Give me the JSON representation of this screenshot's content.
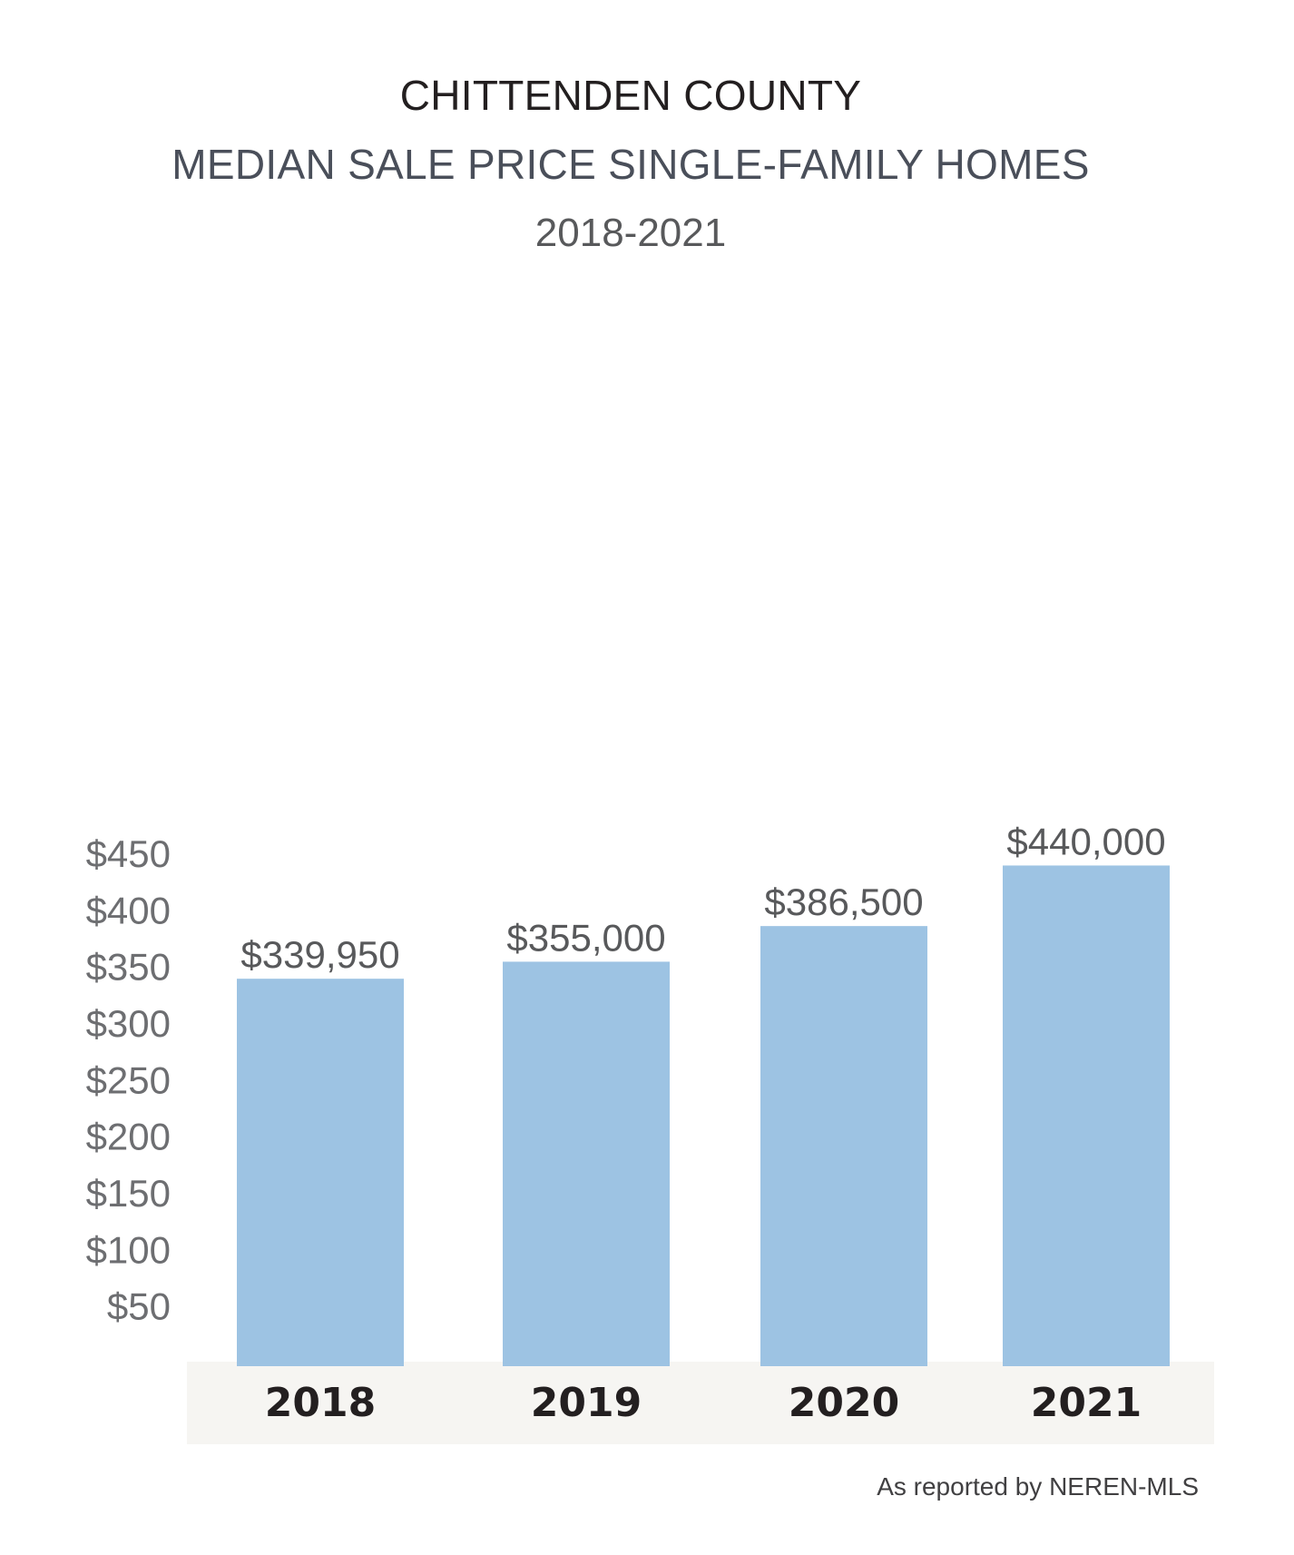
{
  "chart_data": {
    "type": "bar",
    "title": "CHITTENDEN COUNTY",
    "subtitle": "MEDIAN SALE PRICE SINGLE-FAMILY HOMES",
    "period": "2018-2021",
    "categories": [
      "2018",
      "2019",
      "2020",
      "2021"
    ],
    "values": [
      339950,
      355000,
      386500,
      440000
    ],
    "value_labels": [
      "$339,950",
      "$355,000",
      "$386,500",
      "$440,000"
    ],
    "y_ticks": [
      50,
      100,
      150,
      200,
      250,
      300,
      350,
      400,
      450
    ],
    "y_tick_labels": [
      "$50",
      "$100",
      "$150",
      "$200",
      "$250",
      "$300",
      "$350",
      "$400",
      "$450"
    ],
    "y_unit_multiplier": 1000,
    "ylim": [
      0,
      450000
    ],
    "grid": false,
    "bar_color": "#9dc3e3",
    "axis_band_color": "#f6f5f2",
    "xlabel": "",
    "ylabel": ""
  },
  "footnote": "As reported by NEREN-MLS"
}
